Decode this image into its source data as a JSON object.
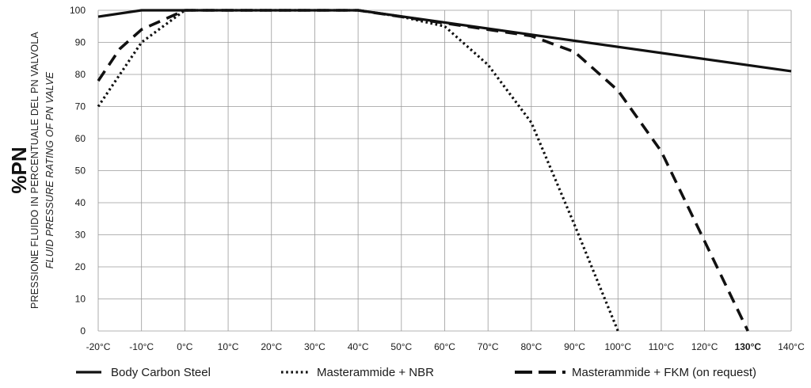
{
  "chart_data": {
    "type": "line",
    "ylabel": "%PN",
    "ylabel_line1": "PRESSIONE FLUIDO IN PERCENTUALE DEL PN VALVOLA",
    "ylabel_line2": "FLUID PRESSURE RATING OF PN VALVE",
    "xlabel": "",
    "x_ticks": [
      "-20°C",
      "-10°C",
      "0°C",
      "10°C",
      "20°C",
      "30°C",
      "40°C",
      "50°C",
      "60°C",
      "70°C",
      "80°C",
      "90°C",
      "100°C",
      "110°C",
      "120°C",
      "130°C",
      "140°C"
    ],
    "x_tick_values": [
      -20,
      -10,
      0,
      10,
      20,
      30,
      40,
      50,
      60,
      70,
      80,
      90,
      100,
      110,
      120,
      130,
      140
    ],
    "bold_tick": "130°C",
    "y_ticks": [
      0,
      10,
      20,
      30,
      40,
      50,
      60,
      70,
      80,
      90,
      100
    ],
    "xlim": [
      -20,
      140
    ],
    "ylim": [
      0,
      100
    ],
    "grid": true,
    "legend_position": "bottom",
    "series": [
      {
        "name": "Body Carbon Steel",
        "style": "solid",
        "x": [
          -20,
          -10,
          40,
          140
        ],
        "y": [
          98,
          100,
          100,
          81
        ]
      },
      {
        "name": "Masterammide + NBR",
        "style": "dotted",
        "x": [
          -20,
          -10,
          0,
          40,
          50,
          60,
          70,
          80,
          90,
          100
        ],
        "y": [
          70,
          90,
          100,
          100,
          98,
          95,
          83,
          65,
          33,
          0
        ]
      },
      {
        "name": "Masterammide + FKM (on request)",
        "style": "dashed",
        "x": [
          -20,
          -15,
          -10,
          -5,
          0,
          40,
          50,
          60,
          70,
          80,
          90,
          100,
          110,
          120,
          130
        ],
        "y": [
          78,
          88,
          94,
          97,
          100,
          100,
          98,
          96,
          94,
          92,
          87,
          75,
          56,
          28,
          0
        ]
      }
    ]
  }
}
